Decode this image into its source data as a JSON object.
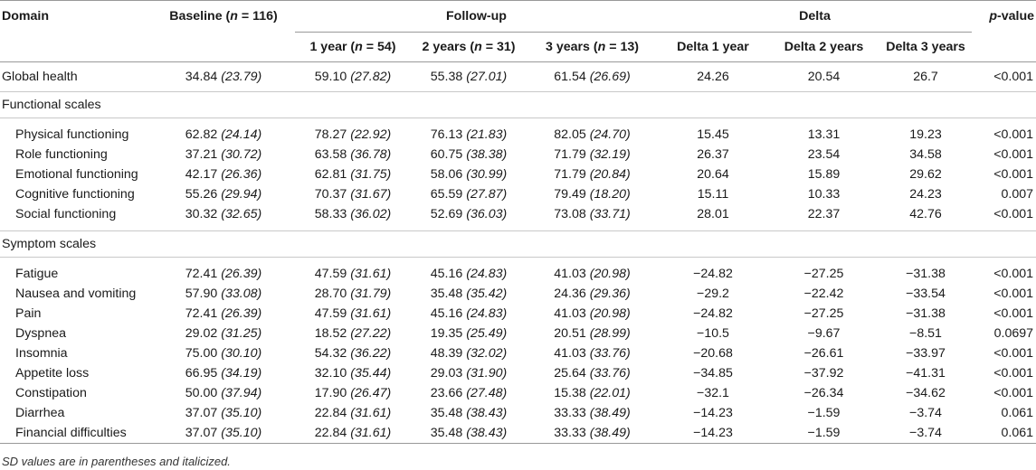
{
  "headers": {
    "domain": "Domain",
    "baseline": "Baseline (n = 116)",
    "followup": "Follow-up",
    "delta": "Delta",
    "pvalue": "p-value",
    "fu1": "1 year (n = 54)",
    "fu2": "2 years (n = 31)",
    "fu3": "3 years (n = 13)",
    "d1": "Delta 1 year",
    "d2": "Delta 2 years",
    "d3": "Delta 3 years"
  },
  "global": {
    "label": "Global health",
    "baseline": "34.84",
    "baseline_sd": "(23.79)",
    "y1": "59.10",
    "y1_sd": "(27.82)",
    "y2": "55.38",
    "y2_sd": "(27.01)",
    "y3": "61.54",
    "y3_sd": "(26.69)",
    "d1": "24.26",
    "d2": "20.54",
    "d3": "26.7",
    "p": "<0.001"
  },
  "functional": {
    "title": "Functional scales",
    "rows": [
      {
        "label": "Physical functioning",
        "baseline": "62.82",
        "baseline_sd": "(24.14)",
        "y1": "78.27",
        "y1_sd": "(22.92)",
        "y2": "76.13",
        "y2_sd": "(21.83)",
        "y3": "82.05",
        "y3_sd": "(24.70)",
        "d1": "15.45",
        "d2": "13.31",
        "d3": "19.23",
        "p": "<0.001"
      },
      {
        "label": "Role functioning",
        "baseline": "37.21",
        "baseline_sd": "(30.72)",
        "y1": "63.58",
        "y1_sd": "(36.78)",
        "y2": "60.75",
        "y2_sd": "(38.38)",
        "y3": "71.79",
        "y3_sd": "(32.19)",
        "d1": "26.37",
        "d2": "23.54",
        "d3": "34.58",
        "p": "<0.001"
      },
      {
        "label": "Emotional functioning",
        "baseline": "42.17",
        "baseline_sd": "(26.36)",
        "y1": "62.81",
        "y1_sd": "(31.75)",
        "y2": "58.06",
        "y2_sd": "(30.99)",
        "y3": "71.79",
        "y3_sd": "(20.84)",
        "d1": "20.64",
        "d2": "15.89",
        "d3": "29.62",
        "p": "<0.001"
      },
      {
        "label": "Cognitive functioning",
        "baseline": "55.26",
        "baseline_sd": "(29.94)",
        "y1": "70.37",
        "y1_sd": "(31.67)",
        "y2": "65.59",
        "y2_sd": "(27.87)",
        "y3": "79.49",
        "y3_sd": "(18.20)",
        "d1": "15.11",
        "d2": "10.33",
        "d3": "24.23",
        "p": "0.007"
      },
      {
        "label": "Social functioning",
        "baseline": "30.32",
        "baseline_sd": "(32.65)",
        "y1": "58.33",
        "y1_sd": "(36.02)",
        "y2": "52.69",
        "y2_sd": "(36.03)",
        "y3": "73.08",
        "y3_sd": "(33.71)",
        "d1": "28.01",
        "d2": "22.37",
        "d3": "42.76",
        "p": "<0.001"
      }
    ]
  },
  "symptom": {
    "title": "Symptom scales",
    "rows": [
      {
        "label": "Fatigue",
        "baseline": "72.41",
        "baseline_sd": "(26.39)",
        "y1": "47.59",
        "y1_sd": "(31.61)",
        "y2": "45.16",
        "y2_sd": "(24.83)",
        "y3": "41.03",
        "y3_sd": "(20.98)",
        "d1": "−24.82",
        "d2": "−27.25",
        "d3": "−31.38",
        "p": "<0.001"
      },
      {
        "label": "Nausea and vomiting",
        "baseline": "57.90",
        "baseline_sd": "(33.08)",
        "y1": "28.70",
        "y1_sd": "(31.79)",
        "y2": "35.48",
        "y2_sd": "(35.42)",
        "y3": "24.36",
        "y3_sd": "(29.36)",
        "d1": "−29.2",
        "d2": "−22.42",
        "d3": "−33.54",
        "p": "<0.001"
      },
      {
        "label": "Pain",
        "baseline": "72.41",
        "baseline_sd": "(26.39)",
        "y1": "47.59",
        "y1_sd": "(31.61)",
        "y2": "45.16",
        "y2_sd": "(24.83)",
        "y3": "41.03",
        "y3_sd": "(20.98)",
        "d1": "−24.82",
        "d2": "−27.25",
        "d3": "−31.38",
        "p": "<0.001"
      },
      {
        "label": "Dyspnea",
        "baseline": "29.02",
        "baseline_sd": "(31.25)",
        "y1": "18.52",
        "y1_sd": "(27.22)",
        "y2": "19.35",
        "y2_sd": "(25.49)",
        "y3": "20.51",
        "y3_sd": "(28.99)",
        "d1": "−10.5",
        "d2": "−9.67",
        "d3": "−8.51",
        "p": "0.0697"
      },
      {
        "label": "Insomnia",
        "baseline": "75.00",
        "baseline_sd": "(30.10)",
        "y1": "54.32",
        "y1_sd": "(36.22)",
        "y2": "48.39",
        "y2_sd": "(32.02)",
        "y3": "41.03",
        "y3_sd": "(33.76)",
        "d1": "−20.68",
        "d2": "−26.61",
        "d3": "−33.97",
        "p": "<0.001"
      },
      {
        "label": "Appetite loss",
        "baseline": "66.95",
        "baseline_sd": "(34.19)",
        "y1": "32.10",
        "y1_sd": "(35.44)",
        "y2": "29.03",
        "y2_sd": "(31.90)",
        "y3": "25.64",
        "y3_sd": "(33.76)",
        "d1": "−34.85",
        "d2": "−37.92",
        "d3": "−41.31",
        "p": "<0.001"
      },
      {
        "label": "Constipation",
        "baseline": "50.00",
        "baseline_sd": "(37.94)",
        "y1": "17.90",
        "y1_sd": "(26.47)",
        "y2": "23.66",
        "y2_sd": "(27.48)",
        "y3": "15.38",
        "y3_sd": "(22.01)",
        "d1": "−32.1",
        "d2": "−26.34",
        "d3": "−34.62",
        "p": "<0.001"
      },
      {
        "label": "Diarrhea",
        "baseline": "37.07",
        "baseline_sd": "(35.10)",
        "y1": "22.84",
        "y1_sd": "(31.61)",
        "y2": "35.48",
        "y2_sd": "(38.43)",
        "y3": "33.33",
        "y3_sd": "(38.49)",
        "d1": "−14.23",
        "d2": "−1.59",
        "d3": "−3.74",
        "p": "0.061"
      },
      {
        "label": "Financial difficulties",
        "baseline": "37.07",
        "baseline_sd": "(35.10)",
        "y1": "22.84",
        "y1_sd": "(31.61)",
        "y2": "35.48",
        "y2_sd": "(38.43)",
        "y3": "33.33",
        "y3_sd": "(38.49)",
        "d1": "−14.23",
        "d2": "−1.59",
        "d3": "−3.74",
        "p": "0.061"
      }
    ]
  },
  "footnote": "SD values are in parentheses and italicized."
}
